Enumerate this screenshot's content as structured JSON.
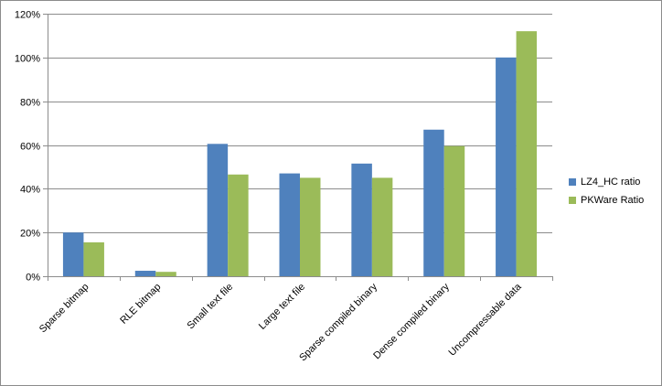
{
  "chart_data": {
    "type": "bar",
    "categories": [
      "Sparse bitmap",
      "RLE bitmap",
      "Small text file",
      "Large text file",
      "Sparse compiled binary",
      "Dense compiled binary",
      "Uncompressable data"
    ],
    "series": [
      {
        "name": "LZ4_HC ratio",
        "color": "#4f81bd",
        "values": [
          20,
          2.5,
          60.5,
          47,
          51.5,
          67,
          100
        ]
      },
      {
        "name": "PKWare Ratio",
        "color": "#9bbb59",
        "values": [
          15.5,
          2,
          46.5,
          45,
          45,
          59.5,
          112
        ]
      }
    ],
    "ylim": [
      0,
      120
    ],
    "yticks": [
      "0%",
      "20%",
      "40%",
      "60%",
      "80%",
      "100%",
      "120%"
    ],
    "grid": true,
    "legend_position": "right"
  }
}
